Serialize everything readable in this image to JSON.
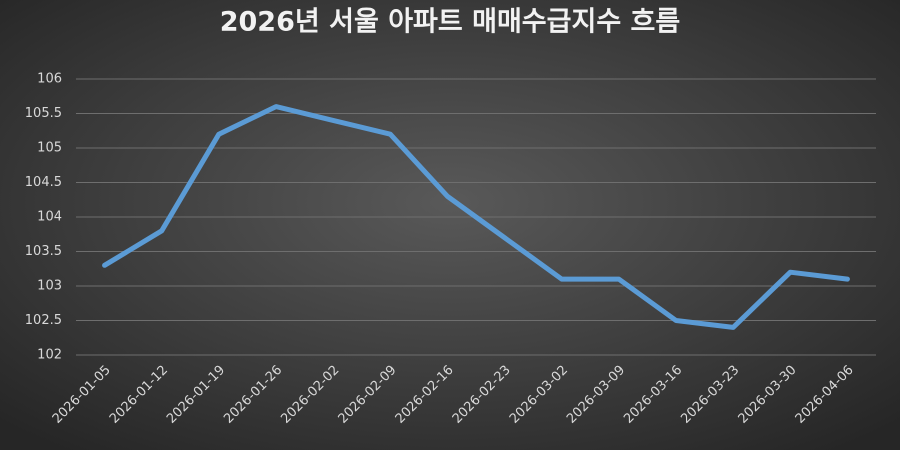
{
  "chart_data": {
    "type": "line",
    "title": "2026년 서울 아파트 매매수급지수 흐름",
    "categories": [
      "2026-01-05",
      "2026-01-12",
      "2026-01-19",
      "2026-01-26",
      "2026-02-02",
      "2026-02-09",
      "2026-02-16",
      "2026-02-23",
      "2026-03-02",
      "2026-03-09",
      "2026-03-16",
      "2026-03-23",
      "2026-03-30",
      "2026-04-06"
    ],
    "values": [
      103.3,
      103.8,
      105.2,
      105.6,
      105.4,
      105.2,
      104.3,
      103.7,
      103.1,
      103.1,
      102.5,
      102.4,
      103.2,
      103.1
    ],
    "color": "#5b9bd5",
    "ylim": [
      102,
      106
    ],
    "yticks": [
      102,
      102.5,
      103,
      103.5,
      104,
      104.5,
      105,
      105.5,
      106
    ],
    "grid": true
  }
}
